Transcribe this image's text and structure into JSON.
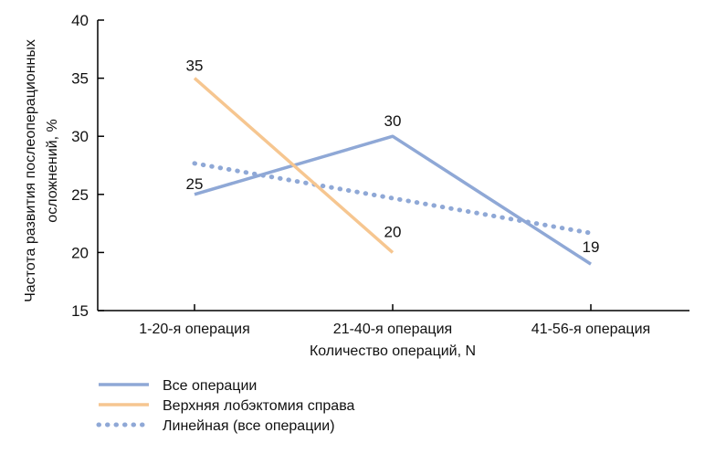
{
  "chart_data": {
    "type": "line",
    "categories": [
      "1-20-я операция",
      "21-40-я операция",
      "41-56-я операция"
    ],
    "xlabel": "Количество операций, N",
    "ylabel_lines": [
      "Частота развития послеоперационных",
      "осложнений, %"
    ],
    "ylim": [
      15,
      40
    ],
    "yticks": [
      "15",
      "20",
      "25",
      "30",
      "35",
      "40"
    ],
    "grid": false,
    "legend_position": "bottom-left",
    "series": [
      {
        "name": "Все операции",
        "values": [
          25,
          30,
          19
        ],
        "labels": [
          "25",
          "30",
          "19"
        ],
        "color": "#8fa8d6",
        "style": "solid"
      },
      {
        "name": "Верхняя лобэктомия справа",
        "values": [
          35,
          20,
          null
        ],
        "labels": [
          "35",
          "20",
          ""
        ],
        "color": "#f6c690",
        "style": "solid"
      },
      {
        "name": "Линейная (все операции)",
        "values": [
          27.67,
          24.67,
          21.67
        ],
        "labels": [
          "",
          "",
          ""
        ],
        "color": "#8fa8d6",
        "style": "dotted"
      }
    ]
  }
}
